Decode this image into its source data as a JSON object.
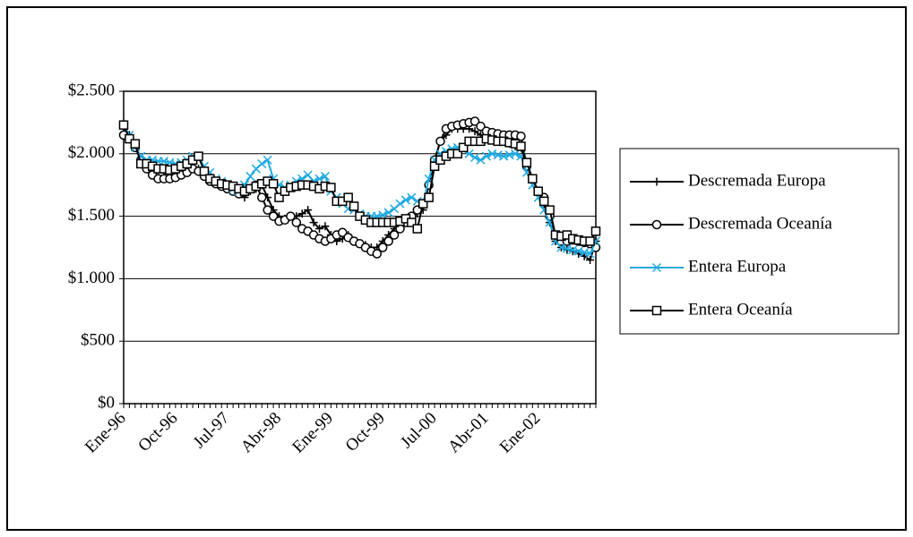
{
  "chart_data": {
    "type": "line",
    "categories": [
      "Ene-96",
      null,
      null,
      null,
      null,
      null,
      null,
      null,
      null,
      "Oct-96",
      null,
      null,
      null,
      null,
      null,
      null,
      null,
      null,
      "Jul-97",
      null,
      null,
      null,
      null,
      null,
      null,
      null,
      null,
      "Abr-98",
      null,
      null,
      null,
      null,
      null,
      null,
      null,
      null,
      "Ene-99",
      null,
      null,
      null,
      null,
      null,
      null,
      null,
      null,
      "Oct-99",
      null,
      null,
      null,
      null,
      null,
      null,
      null,
      null,
      "Jul-00",
      null,
      null,
      null,
      null,
      null,
      null,
      null,
      null,
      "Abr-01",
      null,
      null,
      null,
      null,
      null,
      null,
      null,
      null,
      "Ene-02",
      null,
      null,
      null,
      null,
      null,
      null,
      null,
      null,
      null,
      null
    ],
    "series": [
      {
        "name": "Descremada Europa",
        "color": "#000000",
        "marker": "plus",
        "values": [
          2200,
          2150,
          2050,
          1950,
          1900,
          1880,
          1870,
          1860,
          1860,
          1870,
          1880,
          1880,
          1900,
          1880,
          1850,
          1800,
          1780,
          1750,
          1720,
          1700,
          1680,
          1650,
          1700,
          1720,
          1750,
          1650,
          1550,
          1500,
          1480,
          1500,
          1500,
          1520,
          1550,
          1450,
          1400,
          1420,
          1350,
          1300,
          1320,
          1350,
          1300,
          1280,
          1270,
          1250,
          1250,
          1300,
          1350,
          1400,
          1420,
          1450,
          1500,
          1520,
          1550,
          1750,
          1950,
          2100,
          2150,
          2200,
          2200,
          2200,
          2200,
          2180,
          2150,
          2150,
          2130,
          2120,
          2100,
          2080,
          2060,
          2050,
          1900,
          1800,
          1700,
          1600,
          1450,
          1300,
          1250,
          1230,
          1220,
          1200,
          1180,
          1150,
          1300
        ]
      },
      {
        "name": "Descremada Oceanía",
        "color": "#000000",
        "marker": "circle",
        "values": [
          2150,
          2120,
          2050,
          1950,
          1880,
          1830,
          1800,
          1800,
          1800,
          1810,
          1830,
          1850,
          1880,
          1860,
          1820,
          1780,
          1760,
          1740,
          1720,
          1700,
          1680,
          1700,
          1720,
          1750,
          1650,
          1550,
          1500,
          1460,
          1470,
          1500,
          1450,
          1400,
          1380,
          1350,
          1320,
          1300,
          1320,
          1350,
          1370,
          1330,
          1300,
          1280,
          1250,
          1220,
          1200,
          1250,
          1300,
          1350,
          1400,
          1450,
          1500,
          1550,
          1600,
          1750,
          1950,
          2100,
          2200,
          2220,
          2230,
          2240,
          2250,
          2260,
          2220,
          2180,
          2170,
          2160,
          2150,
          2150,
          2150,
          2140,
          1900,
          1800,
          1700,
          1650,
          1500,
          1350,
          1300,
          1300,
          1310,
          1300,
          1290,
          1280,
          1250
        ]
      },
      {
        "name": "Entera Europa",
        "color": "#1fa9e1",
        "marker": "x",
        "values": [
          2230,
          2150,
          2050,
          1980,
          1950,
          1950,
          1940,
          1940,
          1930,
          1920,
          1930,
          1950,
          1980,
          1960,
          1900,
          1850,
          1800,
          1780,
          1750,
          1720,
          1700,
          1750,
          1820,
          1880,
          1920,
          1950,
          1800,
          1750,
          1730,
          1750,
          1780,
          1800,
          1830,
          1780,
          1800,
          1820,
          1700,
          1650,
          1600,
          1560,
          1550,
          1520,
          1500,
          1500,
          1500,
          1510,
          1530,
          1560,
          1600,
          1630,
          1650,
          1620,
          1600,
          1800,
          1950,
          2000,
          2020,
          2040,
          2050,
          2030,
          2000,
          1970,
          1950,
          1980,
          2000,
          1990,
          1980,
          1990,
          2000,
          1980,
          1850,
          1750,
          1650,
          1550,
          1450,
          1300,
          1250,
          1240,
          1230,
          1220,
          1210,
          1200,
          1300
        ]
      },
      {
        "name": "Entera Oceanía",
        "color": "#000000",
        "marker": "square",
        "values": [
          2230,
          2120,
          2080,
          1920,
          1920,
          1900,
          1880,
          1880,
          1870,
          1880,
          1900,
          1920,
          1950,
          1980,
          1860,
          1800,
          1780,
          1760,
          1750,
          1740,
          1720,
          1700,
          1720,
          1740,
          1760,
          1780,
          1760,
          1650,
          1700,
          1730,
          1740,
          1750,
          1750,
          1740,
          1720,
          1740,
          1730,
          1620,
          1620,
          1650,
          1580,
          1500,
          1470,
          1450,
          1450,
          1450,
          1450,
          1450,
          1460,
          1480,
          1450,
          1400,
          1600,
          1650,
          1900,
          1950,
          1980,
          2000,
          2000,
          2050,
          2100,
          2100,
          2100,
          2120,
          2110,
          2100,
          2100,
          2090,
          2080,
          2060,
          1930,
          1800,
          1700,
          1620,
          1550,
          1350,
          1340,
          1350,
          1320,
          1310,
          1300,
          1300,
          1380
        ]
      }
    ],
    "ylim": [
      0,
      2500
    ],
    "yticks": [
      {
        "value": 0,
        "label": "$0"
      },
      {
        "value": 500,
        "label": "$500"
      },
      {
        "value": 1000,
        "label": "$1.000"
      },
      {
        "value": 1500,
        "label": "$1.500"
      },
      {
        "value": 2000,
        "label": "$2.000"
      },
      {
        "value": 2500,
        "label": "$2.500"
      }
    ],
    "grid": true,
    "legend": "right"
  }
}
